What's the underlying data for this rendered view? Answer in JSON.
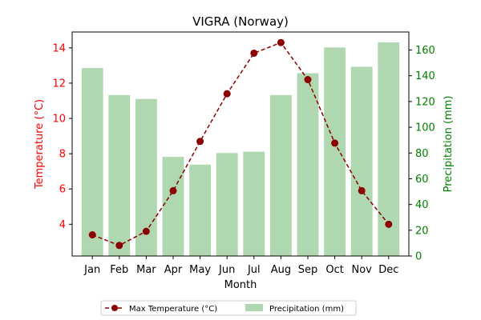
{
  "chart_data": {
    "type": "bar",
    "title": "VIGRA (Norway)",
    "xlabel": "Month",
    "ylabel_left": "Temperature (°C)",
    "ylabel_right": "Precipitation (mm)",
    "categories": [
      "Jan",
      "Feb",
      "Mar",
      "Apr",
      "May",
      "Jun",
      "Jul",
      "Aug",
      "Sep",
      "Oct",
      "Nov",
      "Dec"
    ],
    "series": [
      {
        "name": "Max Temperature (°C)",
        "type": "line",
        "axis": "left",
        "color": "#8b0000",
        "line_style": "dashed",
        "marker": "circle",
        "values": [
          3.4,
          2.8,
          3.6,
          5.9,
          8.7,
          11.4,
          13.7,
          14.3,
          12.2,
          8.6,
          5.9,
          4.0
        ]
      },
      {
        "name": "Precipitation (mm)",
        "type": "bar",
        "axis": "right",
        "color": "#b0d8b0",
        "values": [
          146,
          125,
          122,
          77,
          71,
          80,
          81,
          125,
          142,
          162,
          147,
          166
        ]
      }
    ],
    "ylim_left": [
      2.2,
      14.9
    ],
    "ylim_right": [
      0,
      174
    ],
    "yticks_left": [
      4,
      6,
      8,
      10,
      12,
      14
    ],
    "yticks_right": [
      0,
      20,
      40,
      60,
      80,
      100,
      120,
      140,
      160
    ],
    "left_axis_color": "#ff0000",
    "right_axis_color": "#008000",
    "grid": false,
    "legend_position": "bottom-center"
  }
}
